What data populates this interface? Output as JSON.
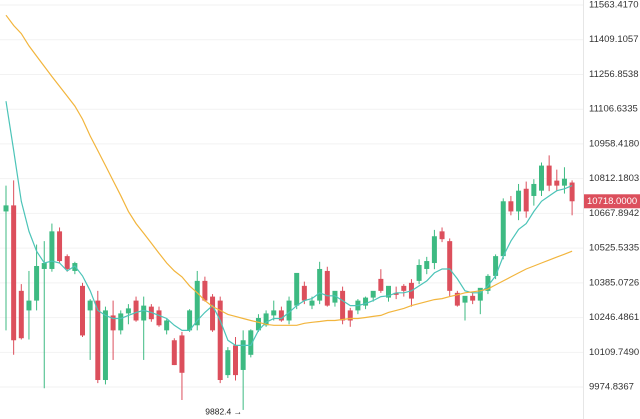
{
  "chart_data": {
    "type": "candlestick",
    "log_scale": true,
    "grid": true,
    "up_color": "#3dba82",
    "down_color": "#dc4f5c",
    "ylim": [
      9852.3,
      11585.8
    ],
    "yticks": [
      {
        "value": 11563.417,
        "label": "11563.4170"
      },
      {
        "value": 11409.1057,
        "label": "11409.1057"
      },
      {
        "value": 11256.8538,
        "label": "11256.8538"
      },
      {
        "value": 11106.6335,
        "label": "11106.6335"
      },
      {
        "value": 10958.418,
        "label": "10958.4180"
      },
      {
        "value": 10812.1803,
        "label": "10812.1803"
      },
      {
        "value": 10667.8942,
        "label": "10667.8942"
      },
      {
        "value": 10525.5335,
        "label": "10525.5335"
      },
      {
        "value": 10385.0726,
        "label": "10385.0726"
      },
      {
        "value": 10246.4861,
        "label": "10246.4861"
      },
      {
        "value": 10109.749,
        "label": "10109.7490"
      },
      {
        "value": 9974.8367,
        "label": "9974.8367"
      }
    ],
    "open": [
      10676,
      10701,
      10353,
      10275,
      10314,
      10441,
      10441,
      10594,
      10493,
      10433,
      10373,
      10275,
      10314,
      10002,
      10255,
      10196,
      10263,
      10314,
      10235,
      10290,
      10275,
      10196,
      10157,
      10176,
      10196,
      10216,
      10393,
      10330,
      10314,
      10021,
      10137,
      10041,
      10100,
      10196,
      10216,
      10255,
      10275,
      10235,
      10294,
      10373,
      10294,
      10314,
      10433,
      10306,
      10353,
      10275,
      10275,
      10294,
      10326,
      10401,
      10326,
      10345,
      10373,
      10385,
      10393,
      10441,
      10465,
      10594,
      10554,
      10345,
      10306,
      10333,
      10314,
      10353,
      10413,
      10493,
      10718,
      10676,
      10770,
      10740,
      10762,
      10867,
      10804,
      10783,
      10796
    ],
    "high": [
      10783,
      10805,
      10380,
      10433,
      10540,
      10554,
      10626,
      10610,
      10500,
      10470,
      10385,
      10320,
      10353,
      10290,
      10314,
      10275,
      10300,
      10330,
      10330,
      10300,
      10290,
      10240,
      10165,
      10190,
      10280,
      10433,
      10410,
      10340,
      10330,
      10130,
      10170,
      10196,
      10200,
      10260,
      10275,
      10314,
      10290,
      10330,
      10420,
      10390,
      10330,
      10470,
      10450,
      10340,
      10370,
      10285,
      10320,
      10330,
      10350,
      10440,
      10360,
      10370,
      10380,
      10400,
      10480,
      10490,
      10600,
      10610,
      10565,
      10353,
      10330,
      10345,
      10360,
      10420,
      10500,
      10730,
      10740,
      10790,
      10800,
      10810,
      10880,
      10910,
      10850,
      10860,
      10805
    ],
    "low": [
      10196,
      10100,
      10160,
      10160,
      10275,
      9970,
      10430,
      10465,
      10430,
      10420,
      10170,
      10080,
      9990,
      9985,
      10080,
      10180,
      10220,
      10230,
      10080,
      10230,
      10210,
      10180,
      10060,
      9925,
      10190,
      10196,
      10310,
      10190,
      9990,
      10010,
      10000,
      9887,
      10090,
      10190,
      10210,
      10235,
      10230,
      10220,
      10280,
      10300,
      10280,
      10300,
      10290,
      10290,
      10220,
      10210,
      10260,
      10280,
      10310,
      10345,
      10310,
      10320,
      10330,
      10290,
      10380,
      10420,
      10440,
      10550,
      10330,
      10290,
      10235,
      10300,
      10260,
      10340,
      10400,
      10480,
      10660,
      10640,
      10650,
      10700,
      10740,
      10760,
      10760,
      10750,
      10660
    ],
    "close": [
      10701,
      10157,
      10165,
      10314,
      10453,
      10465,
      10594,
      10473,
      10441,
      10465,
      10176,
      10314,
      10002,
      10275,
      10196,
      10263,
      10283,
      10235,
      10294,
      10240,
      10216,
      10235,
      10060,
      10030,
      10275,
      10393,
      10314,
      10196,
      10002,
      10118,
      10021,
      10157,
      10196,
      10245,
      10263,
      10275,
      10235,
      10314,
      10425,
      10314,
      10314,
      10441,
      10294,
      10353,
      10235,
      10235,
      10314,
      10326,
      10353,
      10353,
      10373,
      10337,
      10353,
      10322,
      10457,
      10473,
      10574,
      10562,
      10353,
      10294,
      10333,
      10314,
      10365,
      10413,
      10493,
      10718,
      10676,
      10762,
      10676,
      10790,
      10867,
      10783,
      10783,
      10812,
      10718
    ],
    "lines": [
      {
        "color": "#4cc4b8",
        "values": [
          11141,
          10930,
          10718,
          10594,
          10513,
          10465,
          10473,
          10465,
          10433,
          10453,
          10413,
          10353,
          10275,
          10255,
          10243,
          10243,
          10255,
          10267,
          10275,
          10267,
          10255,
          10243,
          10216,
          10196,
          10196,
          10235,
          10267,
          10294,
          10235,
          10157,
          10137,
          10137,
          10137,
          10196,
          10228,
          10243,
          10243,
          10267,
          10294,
          10314,
          10322,
          10345,
          10333,
          10333,
          10314,
          10294,
          10294,
          10302,
          10314,
          10330,
          10333,
          10345,
          10345,
          10353,
          10373,
          10393,
          10425,
          10441,
          10441,
          10401,
          10353,
          10345,
          10345,
          10373,
          10413,
          10493,
          10554,
          10602,
          10626,
          10676,
          10718,
          10740,
          10762,
          10770,
          10783
        ]
      },
      {
        "color": "#f2b53d",
        "values": [
          11518,
          11472,
          11436,
          11382,
          11337,
          11292,
          11248,
          11205,
          11163,
          11120,
          11064,
          10992,
          10930,
          10867,
          10804,
          10741,
          10676,
          10626,
          10586,
          10546,
          10505,
          10465,
          10433,
          10409,
          10373,
          10345,
          10314,
          10290,
          10275,
          10259,
          10251,
          10243,
          10235,
          10228,
          10220,
          10216,
          10216,
          10216,
          10216,
          10224,
          10228,
          10231,
          10235,
          10235,
          10239,
          10243,
          10243,
          10247,
          10251,
          10255,
          10267,
          10275,
          10283,
          10294,
          10302,
          10310,
          10318,
          10322,
          10330,
          10337,
          10345,
          10349,
          10353,
          10361,
          10377,
          10393,
          10409,
          10425,
          10441,
          10453,
          10465,
          10477,
          10489,
          10501,
          10513
        ]
      }
    ],
    "last_price": {
      "value": 10718,
      "label": "10718.0000"
    },
    "low_marker": {
      "value": 9882.4,
      "label": "9882.4 →"
    }
  }
}
